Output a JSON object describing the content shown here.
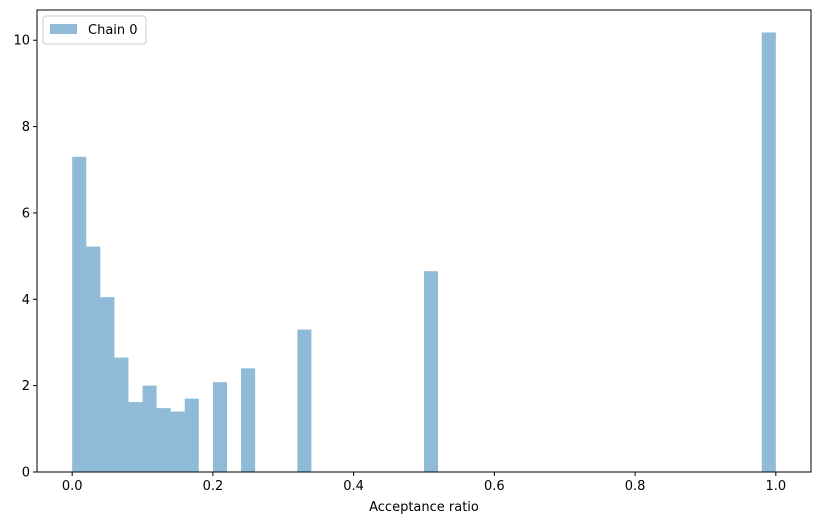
{
  "chart_data": {
    "type": "bar",
    "xlabel": "Acceptance ratio",
    "ylabel": "",
    "xlim": [
      -0.05,
      1.05
    ],
    "ylim": [
      0,
      10.7
    ],
    "bin_width": 0.02,
    "x_ticks": [
      0.0,
      0.2,
      0.4,
      0.6,
      0.8,
      1.0
    ],
    "x_tick_labels": [
      "0.0",
      "0.2",
      "0.4",
      "0.6",
      "0.8",
      "1.0"
    ],
    "y_ticks": [
      0,
      2,
      4,
      6,
      8,
      10
    ],
    "y_tick_labels": [
      "0",
      "2",
      "4",
      "6",
      "8",
      "10"
    ],
    "grid": false,
    "legend_position": "top-left",
    "bar_color": "#1f77b4",
    "bar_opacity": 0.5,
    "series": [
      {
        "name": "Chain 0",
        "bins": [
          {
            "x0": 0.0,
            "value": 7.3
          },
          {
            "x0": 0.02,
            "value": 5.22
          },
          {
            "x0": 0.04,
            "value": 4.05
          },
          {
            "x0": 0.06,
            "value": 2.65
          },
          {
            "x0": 0.08,
            "value": 1.62
          },
          {
            "x0": 0.1,
            "value": 2.0
          },
          {
            "x0": 0.12,
            "value": 1.48
          },
          {
            "x0": 0.14,
            "value": 1.4
          },
          {
            "x0": 0.16,
            "value": 1.7
          },
          {
            "x0": 0.2,
            "value": 2.08
          },
          {
            "x0": 0.24,
            "value": 2.4
          },
          {
            "x0": 0.32,
            "value": 3.3
          },
          {
            "x0": 0.5,
            "value": 4.65
          },
          {
            "x0": 0.98,
            "value": 10.18
          }
        ]
      }
    ]
  }
}
